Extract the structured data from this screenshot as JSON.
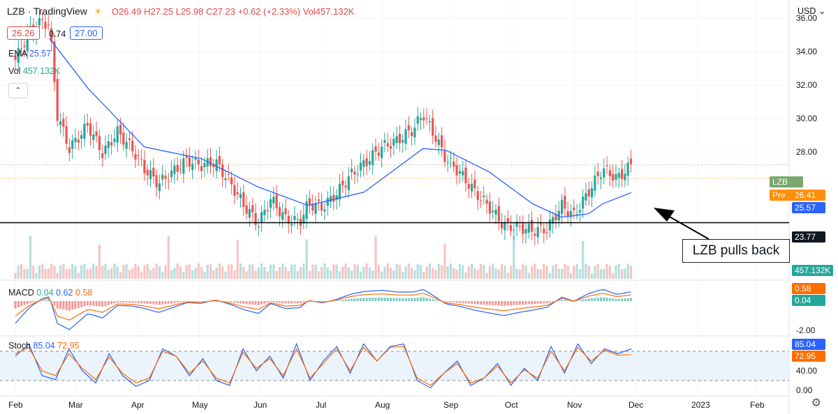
{
  "header": {
    "symbol": "LZB · TradingView",
    "ohlc": "O26.49  H27.25  L25.98  C27.23  +0.62 (+2.33%)  Vol457.132K",
    "sell_price": "26.26",
    "spread": "0.74",
    "buy_price": "27.00",
    "currency": "USD"
  },
  "legend": {
    "ema_label": "EMA",
    "ema_value": "25.57",
    "vol_label": "Vol",
    "vol_value": "457.132K",
    "macd_label": "MACD",
    "macd_v1": "0.04",
    "macd_v2": "0.62",
    "macd_v3": "0.58",
    "stoch_label": "Stoch",
    "stoch_k": "85.04",
    "stoch_d": "72.95"
  },
  "price_tags": {
    "symbol_tag": "LZB",
    "pre_label": "Pre",
    "pre_value": "26.41",
    "ema_tag": "25.57",
    "support_tag": "23.77",
    "vol_tag": "457.132K",
    "macd_tag_1": "0.58",
    "macd_tag_2": "0.04",
    "stoch_tag_1": "85.04",
    "stoch_tag_2": "72.95"
  },
  "annotation": {
    "text": "LZB pulls back"
  },
  "colors": {
    "up": "#26a69a",
    "down": "#ef5350",
    "ema": "#2962ff",
    "macd": "#2962ff",
    "signal": "#ff6d00",
    "stoch_k": "#2962ff",
    "stoch_d": "#ff6d00",
    "support": "#000000"
  },
  "chart_data": {
    "type": "candlestick",
    "symbol": "LZB",
    "xlabels": [
      "Feb",
      "Mar",
      "Apr",
      "May",
      "Jun",
      "Jul",
      "Aug",
      "Sep",
      "Oct",
      "Nov",
      "Dec",
      "2023",
      "Feb"
    ],
    "price_axis": {
      "ticks": [
        "36.00",
        "34.00",
        "32.00",
        "30.00",
        "28.00"
      ],
      "range": [
        23.0,
        37.5
      ]
    },
    "macd_axis": {
      "ticks": [
        "-2.00"
      ]
    },
    "stoch_axis": {
      "ticks": [
        "40.00",
        "0.00"
      ],
      "range": [
        0,
        100
      ],
      "bands": [
        20,
        80
      ]
    },
    "support_level": 23.77,
    "close_path": [
      {
        "date": "Feb 1",
        "close": 33.5
      },
      {
        "date": "Feb 8",
        "close": 35.2
      },
      {
        "date": "Feb 14",
        "close": 35.8
      },
      {
        "date": "Feb 18",
        "close": 35.6
      },
      {
        "date": "Feb 22",
        "close": 30.2
      },
      {
        "date": "Feb 28",
        "close": 28.2
      },
      {
        "date": "Mar 7",
        "close": 29.6
      },
      {
        "date": "Mar 14",
        "close": 27.9
      },
      {
        "date": "Mar 21",
        "close": 29.2
      },
      {
        "date": "Mar 28",
        "close": 28.2
      },
      {
        "date": "Apr 4",
        "close": 27.0
      },
      {
        "date": "Apr 11",
        "close": 26.1
      },
      {
        "date": "Apr 18",
        "close": 26.8
      },
      {
        "date": "Apr 25",
        "close": 27.5
      },
      {
        "date": "May 2",
        "close": 27.2
      },
      {
        "date": "May 9",
        "close": 27.4
      },
      {
        "date": "May 16",
        "close": 26.2
      },
      {
        "date": "May 23",
        "close": 24.8
      },
      {
        "date": "May 30",
        "close": 23.7
      },
      {
        "date": "Jun 6",
        "close": 25.2
      },
      {
        "date": "Jun 13",
        "close": 24.0
      },
      {
        "date": "Jun 20",
        "close": 23.8
      },
      {
        "date": "Jun 24",
        "close": 24.9
      },
      {
        "date": "Jul 1",
        "close": 24.7
      },
      {
        "date": "Jul 8",
        "close": 25.5
      },
      {
        "date": "Jul 15",
        "close": 26.6
      },
      {
        "date": "Jul 22",
        "close": 27.3
      },
      {
        "date": "Aug 1",
        "close": 28.3
      },
      {
        "date": "Aug 8",
        "close": 28.7
      },
      {
        "date": "Aug 15",
        "close": 29.4
      },
      {
        "date": "Aug 19",
        "close": 30.3
      },
      {
        "date": "Aug 24",
        "close": 29.0
      },
      {
        "date": "Aug 29",
        "close": 27.6
      },
      {
        "date": "Sep 6",
        "close": 26.7
      },
      {
        "date": "Sep 13",
        "close": 25.6
      },
      {
        "date": "Sep 20",
        "close": 24.7
      },
      {
        "date": "Sep 27",
        "close": 23.6
      },
      {
        "date": "Oct 4",
        "close": 23.5
      },
      {
        "date": "Oct 11",
        "close": 23.3
      },
      {
        "date": "Oct 18",
        "close": 23.4
      },
      {
        "date": "Oct 25",
        "close": 24.8
      },
      {
        "date": "Nov 1",
        "close": 24.2
      },
      {
        "date": "Nov 8",
        "close": 25.6
      },
      {
        "date": "Nov 15",
        "close": 27.0
      },
      {
        "date": "Nov 22",
        "close": 26.4
      },
      {
        "date": "Nov 29",
        "close": 27.23
      }
    ],
    "ema_path": [
      {
        "date": "Feb 18",
        "ema": 34.8
      },
      {
        "date": "Mar 7",
        "ema": 31.8
      },
      {
        "date": "Apr 4",
        "ema": 28.3
      },
      {
        "date": "May 2",
        "ema": 27.6
      },
      {
        "date": "May 30",
        "ema": 25.9
      },
      {
        "date": "Jun 24",
        "ema": 24.8
      },
      {
        "date": "Jul 22",
        "ema": 25.6
      },
      {
        "date": "Aug 19",
        "ema": 28.2
      },
      {
        "date": "Aug 29",
        "ema": 28.1
      },
      {
        "date": "Sep 20",
        "ema": 26.8
      },
      {
        "date": "Oct 11",
        "ema": 24.9
      },
      {
        "date": "Oct 25",
        "ema": 24.1
      },
      {
        "date": "Nov 8",
        "ema": 24.3
      },
      {
        "date": "Nov 15",
        "ema": 24.9
      },
      {
        "date": "Nov 29",
        "ema": 25.57
      }
    ],
    "stoch_k": [
      70,
      95,
      30,
      22,
      85,
      40,
      15,
      75,
      30,
      8,
      20,
      85,
      70,
      30,
      65,
      20,
      10,
      85,
      40,
      70,
      25,
      95,
      20,
      60,
      90,
      35,
      95,
      60,
      90,
      95,
      20,
      5,
      35,
      60,
      10,
      25,
      55,
      10,
      45,
      20,
      90,
      35,
      95,
      55,
      85,
      75,
      85
    ],
    "stoch_d": [
      75,
      88,
      40,
      30,
      75,
      45,
      22,
      68,
      35,
      15,
      25,
      80,
      70,
      35,
      60,
      25,
      15,
      78,
      45,
      65,
      30,
      85,
      25,
      55,
      85,
      40,
      88,
      60,
      88,
      90,
      25,
      10,
      35,
      55,
      15,
      25,
      50,
      15,
      42,
      25,
      80,
      40,
      88,
      60,
      82,
      72,
      72.95
    ]
  }
}
